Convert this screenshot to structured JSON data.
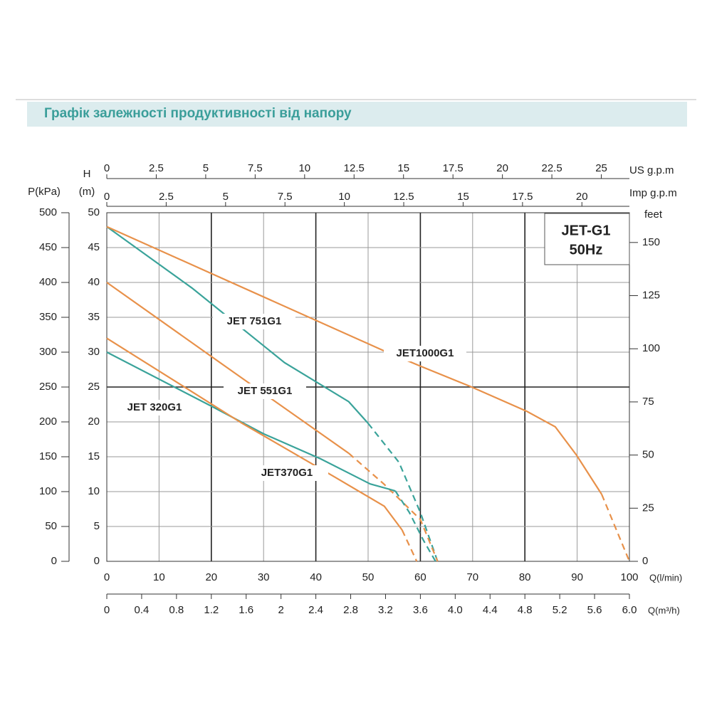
{
  "chart_data": {
    "type": "line",
    "title": "Графік залежності продуктивності від напору",
    "model": "JET-G1",
    "frequency": "50Hz",
    "xlabel": "Q(l/min)",
    "xlim": [
      0,
      100
    ],
    "xticks": [
      0,
      10,
      20,
      30,
      40,
      50,
      60,
      70,
      80,
      90,
      100
    ],
    "x2label": "Q(m³/h)",
    "x2lim": [
      0,
      6
    ],
    "x2ticks": [
      0,
      0.4,
      0.8,
      1.2,
      1.6,
      2,
      2.4,
      2.8,
      3.2,
      3.6,
      {
        "value": 4,
        "label": "4.0"
      },
      4.4,
      4.8,
      5.2,
      5.6,
      {
        "value": 6,
        "label": "6.0"
      }
    ],
    "x3label": "US g.p.m",
    "x3lim": [
      0,
      26.42
    ],
    "x3ticks": [
      0,
      2.5,
      5,
      7.5,
      10,
      12.5,
      15,
      17.5,
      20,
      22.5,
      25
    ],
    "x4label": "Imp g.p.m",
    "x4lim": [
      0,
      22
    ],
    "x4ticks": [
      0,
      2.5,
      5,
      7.5,
      10,
      12.5,
      15,
      17.5,
      20
    ],
    "ylabel": "H",
    "yunit": "(m)",
    "ylim": [
      0,
      50
    ],
    "yticks": [
      0,
      5,
      10,
      15,
      20,
      25,
      30,
      35,
      40,
      45,
      50
    ],
    "y2label": "feet",
    "y2lim": [
      0,
      164
    ],
    "y2ticks": [
      0,
      25,
      50,
      75,
      100,
      125,
      150
    ],
    "y3label": "P(kPa)",
    "y3lim": [
      0,
      500
    ],
    "y3ticks": [
      0,
      50,
      100,
      150,
      200,
      250,
      300,
      350,
      400,
      450,
      500
    ],
    "grid": true,
    "series": [
      {
        "name": "JET 751G1",
        "color": "#3aa39a",
        "dashed_from": 50,
        "x": [
          0,
          16.3,
          34,
          46.3,
          50,
          55.9,
          60,
          63.3
        ],
        "values": [
          48,
          39.2,
          28.5,
          22.9,
          19.8,
          14.2,
          7,
          0
        ]
      },
      {
        "name": "JET1000G1",
        "color": "#e8914a",
        "dashed_from": 94.7,
        "x": [
          0,
          53,
          60,
          69.5,
          80.4,
          85.8,
          89.9,
          94.7,
          100
        ],
        "values": [
          48,
          30.2,
          28,
          25.1,
          21.5,
          19.3,
          15.2,
          9.6,
          0
        ]
      },
      {
        "name": "JET 551G1",
        "color": "#e8914a",
        "dashed_from": 46.3,
        "x": [
          0,
          24.5,
          46.3,
          53,
          60,
          63.3
        ],
        "values": [
          40,
          27,
          15.5,
          11.1,
          6,
          0
        ]
      },
      {
        "name": "JET 320G1",
        "color": "#3aa39a",
        "dashed_from": 55.2,
        "x": [
          0,
          20.4,
          30,
          40.9,
          50.4,
          55.2,
          57.9,
          60.6,
          62.9
        ],
        "values": [
          30,
          22.1,
          18.3,
          14.7,
          11.1,
          10.1,
          7,
          3,
          0
        ]
      },
      {
        "name": "JET370G1",
        "color": "#e8914a",
        "dashed_from": 56.5,
        "x": [
          0,
          25.9,
          43.6,
          53.1,
          56.5,
          59.3
        ],
        "values": [
          32,
          19.8,
          12.1,
          7.9,
          4.5,
          0
        ]
      }
    ]
  }
}
